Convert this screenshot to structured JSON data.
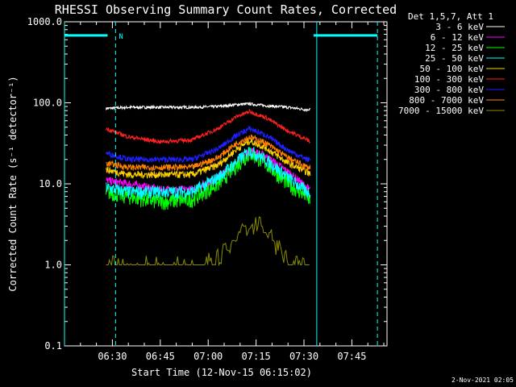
{
  "chart_data": {
    "type": "line",
    "title": "RHESSI Observing Summary Count Rates, Corrected",
    "xlabel": "Start Time (12-Nov-15 06:15:02)",
    "ylabel": "Corrected Count Rate (s⁻¹ detector⁻¹)",
    "yscale": "log",
    "ylim": [
      0.1,
      1000
    ],
    "xlim_minutes_after_0615": [
      0,
      101
    ],
    "y_tick_labels": [
      "0.1",
      "1.0",
      "10.0",
      "100.0",
      "1000.0"
    ],
    "y_tick_values": [
      0.1,
      1,
      10,
      100,
      1000
    ],
    "x_tick_labels": [
      "06:30",
      "06:45",
      "07:00",
      "07:15",
      "07:30",
      "07:45"
    ],
    "x_tick_values_minutes": [
      15,
      30,
      45,
      60,
      75,
      90
    ],
    "legend_header": "Det 1,5,7, Att 1",
    "legend_position": "top-right, outside plot",
    "flag_marker_label": "N",
    "timestamp": "2-Nov-2021 02:05",
    "series": [
      {
        "name": "3 - 6 keV",
        "color": "#ffffff",
        "x": [
          13,
          20,
          30,
          40,
          48,
          54,
          58,
          63,
          70,
          76,
          77
        ],
        "y": [
          85,
          88,
          88,
          88,
          90,
          95,
          97,
          92,
          88,
          82,
          85
        ]
      },
      {
        "name": "6 - 12 keV",
        "color": "#ff00ff",
        "x": [
          13,
          20,
          30,
          40,
          48,
          54,
          58,
          63,
          70,
          76,
          77
        ],
        "y": [
          11,
          10,
          8.5,
          8.5,
          12,
          18,
          26,
          22,
          14,
          9,
          8.5
        ]
      },
      {
        "name": "12 - 25 keV",
        "color": "#00ff00",
        "x": [
          13,
          20,
          30,
          40,
          48,
          54,
          58,
          63,
          70,
          76,
          77
        ],
        "y": [
          8,
          7,
          6,
          6.5,
          10,
          17,
          24,
          18,
          10,
          7,
          6
        ]
      },
      {
        "name": "25 - 50 keV",
        "color": "#00ffff",
        "x": [
          13,
          20,
          30,
          40,
          48,
          54,
          58,
          63,
          70,
          76,
          77
        ],
        "y": [
          9,
          8,
          8,
          8,
          12,
          19,
          26,
          20,
          12,
          8,
          8
        ]
      },
      {
        "name": "50 - 100 keV",
        "color": "#ffd000",
        "x": [
          13,
          20,
          30,
          40,
          48,
          54,
          58,
          63,
          70,
          76,
          77
        ],
        "y": [
          15,
          13,
          13,
          13,
          17,
          27,
          34,
          28,
          18,
          14,
          13
        ]
      },
      {
        "name": "100 - 300 keV",
        "color": "#ff2020",
        "x": [
          13,
          20,
          30,
          40,
          48,
          54,
          58,
          63,
          70,
          76,
          77
        ],
        "y": [
          48,
          38,
          33,
          35,
          48,
          68,
          78,
          66,
          45,
          35,
          33
        ]
      },
      {
        "name": "300 - 800 keV",
        "color": "#2020ff",
        "x": [
          13,
          20,
          30,
          40,
          48,
          54,
          58,
          63,
          70,
          76,
          77
        ],
        "y": [
          24,
          20,
          20,
          20,
          27,
          40,
          48,
          40,
          26,
          20,
          20
        ]
      },
      {
        "name": "800 - 7000 keV",
        "color": "#ff8000",
        "x": [
          13,
          20,
          30,
          40,
          48,
          54,
          58,
          63,
          70,
          76,
          77
        ],
        "y": [
          18,
          16,
          16,
          16,
          21,
          32,
          38,
          32,
          21,
          16,
          16
        ]
      },
      {
        "name": "7000 - 15000 keV",
        "color": "#8b8b00",
        "x": [
          13,
          20,
          30,
          40,
          48,
          52,
          56,
          60,
          64,
          68,
          72,
          76,
          77
        ],
        "y": [
          1.0,
          1.0,
          1.0,
          1.0,
          1.2,
          1.8,
          2.8,
          3.3,
          2.4,
          1.5,
          1.0,
          1.0,
          1.0
        ]
      }
    ],
    "flag_bars": [
      {
        "color": "#00ffff",
        "x": [
          0,
          13.5
        ],
        "y": 680
      },
      {
        "color": "#00ffff",
        "x": [
          78,
          98
        ],
        "y": 680
      }
    ],
    "vertical_lines": [
      {
        "color": "#00ffff",
        "style": "solid",
        "x": 0
      },
      {
        "color": "#00ffff",
        "style": "dashed",
        "x": 16
      },
      {
        "color": "#00ffff",
        "style": "solid",
        "x": 79
      },
      {
        "color": "#00ffff",
        "style": "dashed",
        "x": 98
      }
    ]
  }
}
